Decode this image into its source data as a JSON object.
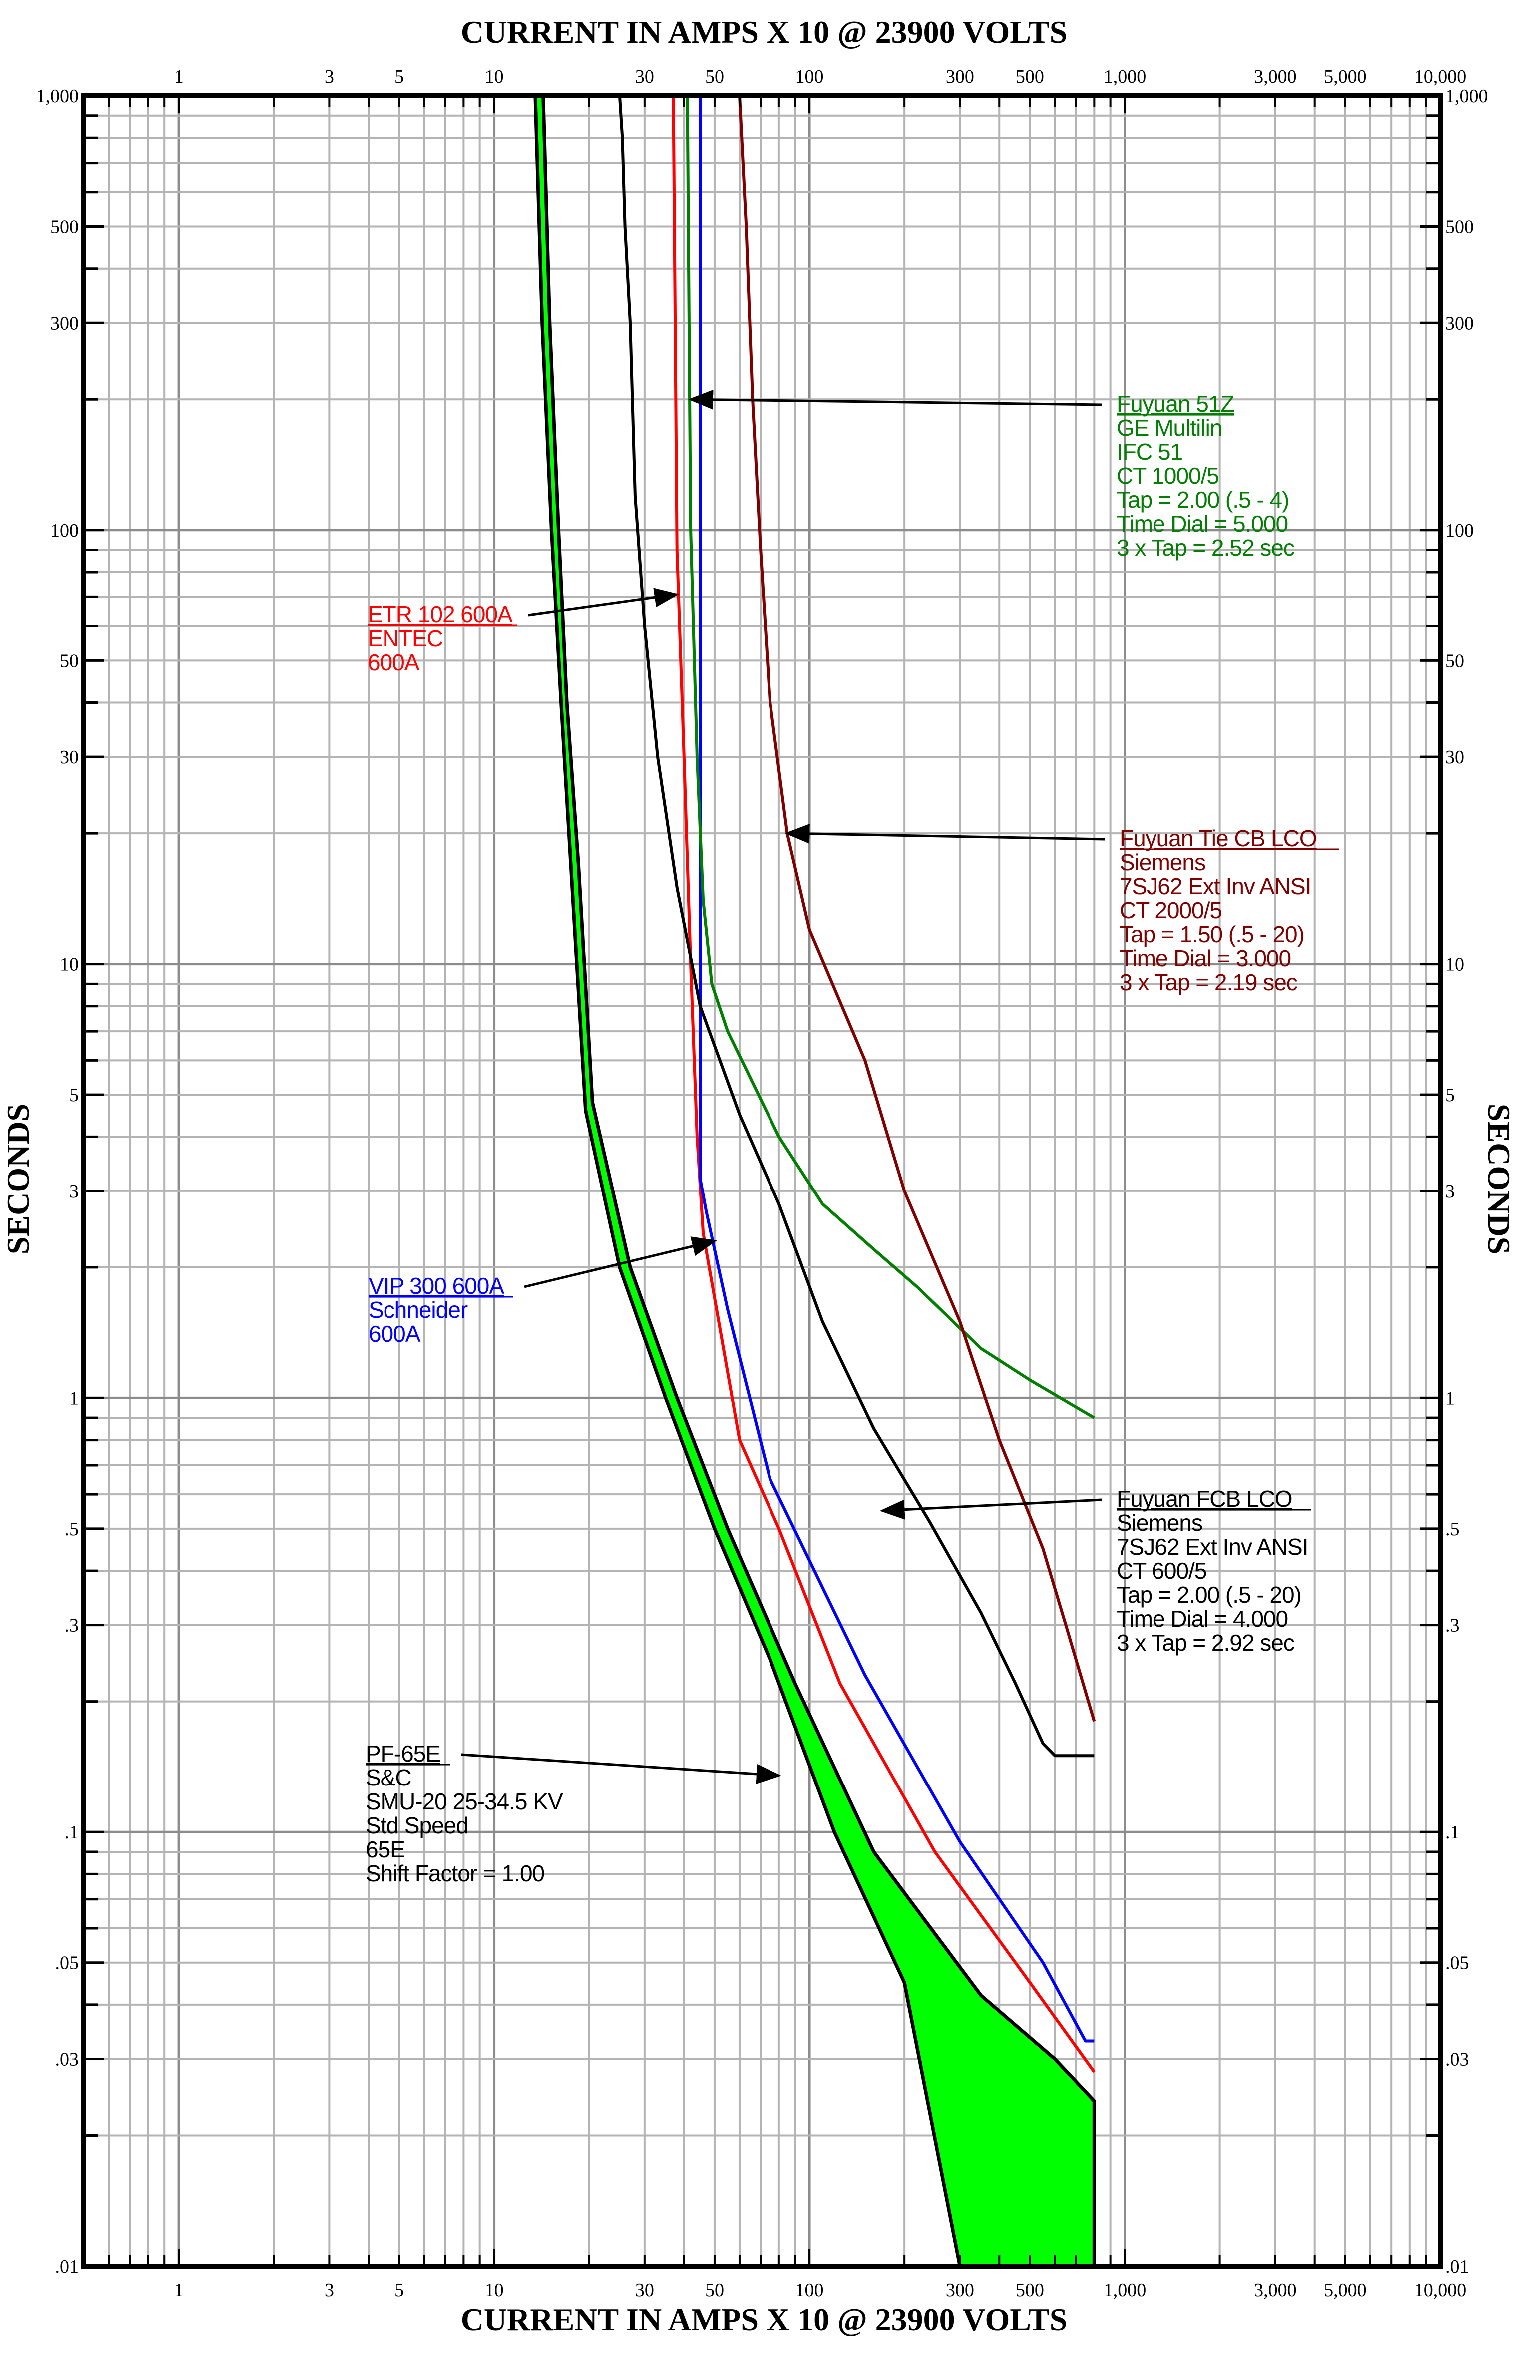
{
  "chart_data": {
    "type": "line",
    "title_top": "CURRENT IN AMPS X 10 @ 23900 VOLTS",
    "title_bottom": "CURRENT IN AMPS X 10 @ 23900 VOLTS",
    "ylabel_left": "SECONDS",
    "ylabel_right": "SECONDS",
    "x_scale": "log",
    "y_scale": "log",
    "xlim": [
      0.5,
      10000
    ],
    "ylim": [
      0.01,
      1000
    ],
    "grid": true,
    "x_ticks": [
      {
        "value": 1,
        "label": "1"
      },
      {
        "value": 3,
        "label": "3"
      },
      {
        "value": 5,
        "label": "5"
      },
      {
        "value": 10,
        "label": "10"
      },
      {
        "value": 30,
        "label": "30"
      },
      {
        "value": 50,
        "label": "50"
      },
      {
        "value": 100,
        "label": "100"
      },
      {
        "value": 300,
        "label": "300"
      },
      {
        "value": 500,
        "label": "500"
      },
      {
        "value": 1000,
        "label": "1,000"
      },
      {
        "value": 3000,
        "label": "3,000"
      },
      {
        "value": 5000,
        "label": "5,000"
      },
      {
        "value": 10000,
        "label": "10,000"
      }
    ],
    "y_ticks": [
      {
        "value": 1000,
        "label": "1,000"
      },
      {
        "value": 500,
        "label": "500"
      },
      {
        "value": 300,
        "label": "300"
      },
      {
        "value": 100,
        "label": "100"
      },
      {
        "value": 50,
        "label": "50"
      },
      {
        "value": 30,
        "label": "30"
      },
      {
        "value": 10,
        "label": "10"
      },
      {
        "value": 5,
        "label": "5"
      },
      {
        "value": 3,
        "label": "3"
      },
      {
        "value": 1,
        "label": "1"
      },
      {
        "value": 0.5,
        "label": ".5"
      },
      {
        "value": 0.3,
        "label": ".3"
      },
      {
        "value": 0.1,
        "label": ".1"
      },
      {
        "value": 0.05,
        "label": ".05"
      },
      {
        "value": 0.03,
        "label": ".03"
      },
      {
        "value": 0.01,
        "label": ".01"
      }
    ],
    "fuse_band": {
      "name": "PF-65E",
      "color": "#00ff00",
      "min_curve": [
        [
          13.5,
          1000
        ],
        [
          14.2,
          300
        ],
        [
          15.2,
          100
        ],
        [
          16.3,
          40
        ],
        [
          17.5,
          17
        ],
        [
          19.5,
          4.6
        ],
        [
          25,
          2
        ],
        [
          35,
          1
        ],
        [
          50,
          0.5
        ],
        [
          75,
          0.25
        ],
        [
          120,
          0.1
        ],
        [
          200,
          0.045
        ],
        [
          300,
          0.01
        ]
      ],
      "max_curve": [
        [
          14.3,
          1000
        ],
        [
          15,
          300
        ],
        [
          16,
          100
        ],
        [
          17,
          40
        ],
        [
          18.5,
          17
        ],
        [
          20.5,
          4.8
        ],
        [
          27,
          2
        ],
        [
          38,
          1
        ],
        [
          55,
          0.5
        ],
        [
          90,
          0.22
        ],
        [
          160,
          0.09
        ],
        [
          350,
          0.042
        ],
        [
          600,
          0.03
        ],
        [
          800,
          0.024
        ],
        [
          800,
          0.01
        ]
      ]
    },
    "series": [
      {
        "name": "ETR 102 600A",
        "color": "#ff0000",
        "points": [
          [
            37,
            1000
          ],
          [
            37.5,
            300
          ],
          [
            38,
            90
          ],
          [
            40,
            30
          ],
          [
            42,
            10
          ],
          [
            44,
            4
          ],
          [
            46,
            2.4
          ],
          [
            60,
            0.8
          ],
          [
            80,
            0.5
          ],
          [
            125,
            0.22
          ],
          [
            250,
            0.09
          ],
          [
            500,
            0.045
          ],
          [
            800,
            0.028
          ]
        ]
      },
      {
        "name": "VIP 300 600A",
        "color": "#0000ff",
        "points": [
          [
            45,
            1000
          ],
          [
            45,
            3.2
          ],
          [
            47,
            2.7
          ],
          [
            55,
            1.6
          ],
          [
            75,
            0.65
          ],
          [
            150,
            0.23
          ],
          [
            300,
            0.095
          ],
          [
            550,
            0.05
          ],
          [
            750,
            0.033
          ],
          [
            800,
            0.033
          ]
        ]
      },
      {
        "name": "Fuyuan 51Z",
        "color": "#007f00",
        "points": [
          [
            41,
            1000
          ],
          [
            41.5,
            300
          ],
          [
            42,
            100
          ],
          [
            44,
            30
          ],
          [
            46,
            14
          ],
          [
            49,
            9
          ],
          [
            55,
            7
          ],
          [
            80,
            4
          ],
          [
            110,
            2.8
          ],
          [
            160,
            2.2
          ],
          [
            220,
            1.8
          ],
          [
            350,
            1.3
          ],
          [
            500,
            1.1
          ],
          [
            800,
            0.9
          ]
        ]
      },
      {
        "name": "Fuyuan FCB LCO",
        "color": "#000000",
        "points": [
          [
            25,
            1000
          ],
          [
            25.5,
            800
          ],
          [
            26,
            500
          ],
          [
            27,
            300
          ],
          [
            28,
            120
          ],
          [
            30,
            60
          ],
          [
            33,
            30
          ],
          [
            38,
            15
          ],
          [
            45,
            8
          ],
          [
            60,
            4.5
          ],
          [
            80,
            2.8
          ],
          [
            110,
            1.5
          ],
          [
            160,
            0.85
          ],
          [
            240,
            0.52
          ],
          [
            350,
            0.32
          ],
          [
            450,
            0.22
          ],
          [
            550,
            0.16
          ],
          [
            600,
            0.15
          ],
          [
            800,
            0.15
          ]
        ]
      },
      {
        "name": "Fuyuan Tie CB LCO",
        "color": "#800000",
        "points": [
          [
            60,
            1000
          ],
          [
            63,
            500
          ],
          [
            66,
            200
          ],
          [
            70,
            90
          ],
          [
            75,
            40
          ],
          [
            85,
            20
          ],
          [
            100,
            12
          ],
          [
            150,
            6
          ],
          [
            200,
            3
          ],
          [
            300,
            1.5
          ],
          [
            400,
            0.8
          ],
          [
            550,
            0.45
          ],
          [
            650,
            0.3
          ],
          [
            800,
            0.18
          ]
        ]
      }
    ],
    "annotations": [
      {
        "title": "Fuyuan 51Z",
        "color": "#007f00",
        "lines": [
          "GE Multilin",
          "IFC 51",
          "CT 1000/5",
          "Tap = 2.00 (.5 - 4)",
          "Time Dial = 5.000",
          "3 x Tap = 2.52 sec"
        ],
        "arrow_to": [
          42,
          200
        ]
      },
      {
        "title": "ETR 102 600A",
        "color": "#ff0000",
        "lines": [
          "ENTEC",
          "600A"
        ],
        "arrow_to": [
          38,
          71
        ]
      },
      {
        "title": "Fuyuan Tie CB LCO",
        "color": "#800000",
        "lines": [
          "Siemens",
          "7SJ62 Ext Inv ANSI",
          "CT 2000/5",
          "Tap = 1.50 (.5 - 20)",
          "Time Dial = 3.000",
          "3 x Tap = 2.19 sec"
        ],
        "arrow_to": [
          85,
          20
        ]
      },
      {
        "title": "VIP 300 600A",
        "color": "#0000ff",
        "lines": [
          "Schneider",
          "600A"
        ],
        "arrow_to": [
          50,
          2.3
        ]
      },
      {
        "title": "Fuyuan FCB LCO",
        "color": "#000000",
        "lines": [
          "Siemens",
          "7SJ62 Ext Inv ANSI",
          "CT 600/5",
          "Tap = 2.00 (.5 - 20)",
          "Time Dial = 4.000",
          "3 x Tap = 2.92 sec"
        ],
        "arrow_to": [
          170,
          0.55
        ]
      },
      {
        "title": "PF-65E",
        "color": "#000000",
        "lines": [
          "S&C",
          "SMU-20 25-34.5 KV",
          "Std Speed",
          "65E",
          "Shift Factor = 1.00"
        ],
        "arrow_to": [
          80,
          0.135
        ]
      }
    ]
  }
}
